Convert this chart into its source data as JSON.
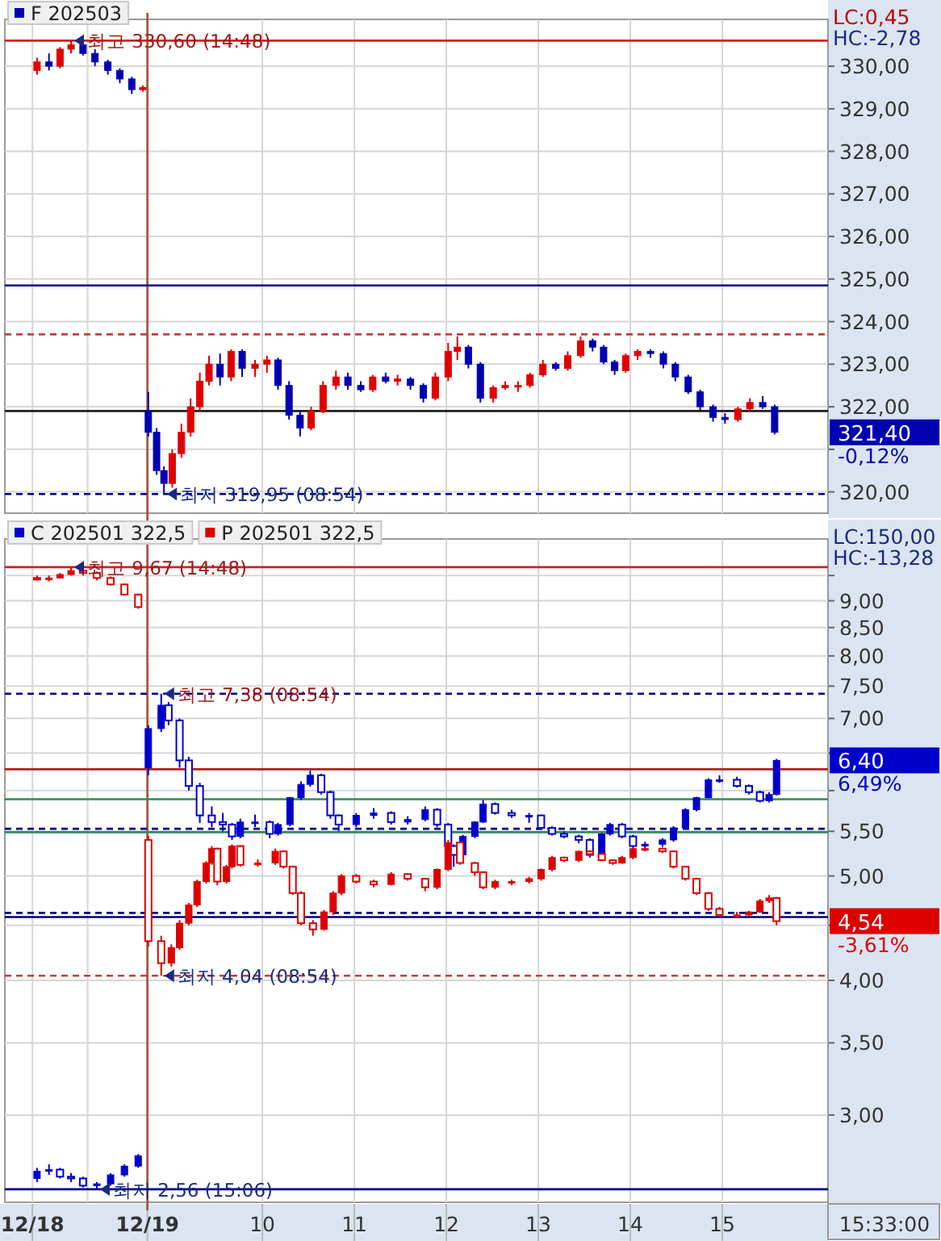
{
  "chart_data": [
    {
      "type": "candlestick",
      "legend": "top left",
      "grid": true,
      "tick_labels": "y",
      "xlim": [
        7.2,
        16.15
      ],
      "xticks": [
        {
          "value": 7.5,
          "label": null
        },
        {
          "value": 8.1,
          "label": null
        },
        {
          "value": 8.75,
          "label": null
        },
        {
          "value": 10,
          "label": null
        },
        {
          "value": 11,
          "label": null
        },
        {
          "value": 12,
          "label": null
        },
        {
          "value": 13,
          "label": null
        },
        {
          "value": 14,
          "label": null
        },
        {
          "value": 15,
          "label": null
        }
      ],
      "ylim": [
        319.5,
        331.1
      ],
      "yticks": [
        {
          "value": 320,
          "label": "320,00"
        },
        {
          "value": 321,
          "label": null
        },
        {
          "value": 322,
          "label": "322,00"
        },
        {
          "value": 323,
          "label": "323,00"
        },
        {
          "value": 324,
          "label": "324,00"
        },
        {
          "value": 325,
          "label": "325,00"
        },
        {
          "value": 326,
          "label": "326,00"
        },
        {
          "value": 327,
          "label": "327,00"
        },
        {
          "value": 328,
          "label": "328,00"
        },
        {
          "value": 329,
          "label": "329,00"
        },
        {
          "value": 330,
          "label": "330,00"
        }
      ],
      "ref_lines": [
        {
          "axis": "x",
          "value": 8.75,
          "color": "#a0522d"
        },
        {
          "axis": "y",
          "value": 330.6,
          "color": "#d42020"
        },
        {
          "axis": "y",
          "value": 324.85,
          "color": "#000080"
        },
        {
          "axis": "y",
          "value": 323.7,
          "color": "#c04040",
          "line_style": "dashed"
        },
        {
          "axis": "y",
          "value": 321.9,
          "color": "#202020"
        },
        {
          "axis": "y",
          "value": 319.95,
          "color": "#000080",
          "line_style": "dashed"
        }
      ],
      "series": [
        {
          "name": "F 202503",
          "color": "#0000b0",
          "x": [
            7.55,
            7.68,
            7.8,
            7.92,
            8.05,
            8.18,
            8.32,
            8.45,
            8.58,
            8.7,
            8.76,
            8.85,
            8.93,
            9.02,
            9.12,
            9.22,
            9.32,
            9.42,
            9.54,
            9.66,
            9.78,
            9.92,
            10.05,
            10.17,
            10.29,
            10.41,
            10.53,
            10.66,
            10.8,
            10.93,
            11.07,
            11.2,
            11.34,
            11.47,
            11.61,
            11.75,
            11.88,
            12.02,
            12.12,
            12.24,
            12.37,
            12.51,
            12.64,
            12.78,
            12.91,
            13.05,
            13.19,
            13.32,
            13.46,
            13.59,
            13.71,
            13.83,
            13.95,
            14.08,
            14.22,
            14.36,
            14.49,
            14.63,
            14.76,
            14.9,
            15.03,
            15.17,
            15.3,
            15.44,
            15.57
          ],
          "ohlc": [
            [
              329.9,
              330.2,
              329.8,
              330.1
            ],
            [
              330.1,
              330.3,
              329.9,
              330.0
            ],
            [
              330.0,
              330.45,
              329.95,
              330.4
            ],
            [
              330.4,
              330.6,
              330.3,
              330.5
            ],
            [
              330.5,
              330.55,
              330.25,
              330.3
            ],
            [
              330.3,
              330.4,
              330.0,
              330.1
            ],
            [
              330.1,
              330.15,
              329.8,
              329.9
            ],
            [
              329.9,
              329.95,
              329.6,
              329.7
            ],
            [
              329.7,
              329.75,
              329.35,
              329.45
            ],
            [
              329.45,
              329.55,
              329.4,
              329.5
            ],
            [
              321.9,
              322.35,
              321.3,
              321.4
            ],
            [
              321.4,
              321.5,
              320.4,
              320.5
            ],
            [
              320.5,
              320.6,
              319.95,
              320.2
            ],
            [
              320.2,
              321.0,
              320.1,
              320.9
            ],
            [
              320.9,
              321.6,
              320.8,
              321.4
            ],
            [
              321.4,
              322.2,
              321.3,
              322.0
            ],
            [
              322.0,
              322.8,
              321.9,
              322.6
            ],
            [
              322.6,
              323.2,
              322.5,
              323.0
            ],
            [
              323.0,
              323.25,
              322.5,
              322.7
            ],
            [
              322.7,
              323.35,
              322.6,
              323.3
            ],
            [
              323.3,
              323.35,
              322.7,
              322.9
            ],
            [
              322.9,
              323.1,
              322.7,
              323.0
            ],
            [
              323.0,
              323.2,
              322.8,
              323.1
            ],
            [
              323.1,
              323.15,
              322.4,
              322.5
            ],
            [
              322.5,
              322.6,
              321.7,
              321.8
            ],
            [
              321.8,
              321.9,
              321.3,
              321.5
            ],
            [
              321.5,
              322.0,
              321.45,
              321.9
            ],
            [
              321.9,
              322.6,
              321.85,
              322.5
            ],
            [
              322.5,
              322.85,
              322.4,
              322.7
            ],
            [
              322.7,
              322.8,
              322.4,
              322.5
            ],
            [
              322.5,
              322.6,
              322.35,
              322.4
            ],
            [
              322.4,
              322.75,
              322.35,
              322.7
            ],
            [
              322.7,
              322.8,
              322.55,
              322.6
            ],
            [
              322.6,
              322.75,
              322.5,
              322.65
            ],
            [
              322.65,
              322.7,
              322.4,
              322.5
            ],
            [
              322.5,
              322.55,
              322.1,
              322.2
            ],
            [
              322.2,
              322.8,
              322.15,
              322.7
            ],
            [
              322.7,
              323.5,
              322.6,
              323.3
            ],
            [
              323.3,
              323.65,
              323.1,
              323.4
            ],
            [
              323.4,
              323.45,
              322.9,
              323.0
            ],
            [
              323.0,
              323.05,
              322.1,
              322.2
            ],
            [
              322.2,
              322.5,
              322.1,
              322.45
            ],
            [
              322.45,
              322.6,
              322.4,
              322.5
            ],
            [
              322.5,
              322.6,
              322.35,
              322.5
            ],
            [
              322.5,
              322.8,
              322.45,
              322.75
            ],
            [
              322.75,
              323.1,
              322.7,
              323.0
            ],
            [
              323.0,
              323.05,
              322.85,
              322.9
            ],
            [
              322.9,
              323.3,
              322.85,
              323.2
            ],
            [
              323.2,
              323.65,
              323.15,
              323.55
            ],
            [
              323.55,
              323.6,
              323.3,
              323.4
            ],
            [
              323.4,
              323.45,
              323.0,
              323.05
            ],
            [
              323.05,
              323.1,
              322.75,
              322.85
            ],
            [
              322.85,
              323.25,
              322.8,
              323.2
            ],
            [
              323.2,
              323.35,
              323.1,
              323.3
            ],
            [
              323.3,
              323.35,
              323.15,
              323.25
            ],
            [
              323.25,
              323.3,
              322.9,
              323.0
            ],
            [
              323.0,
              323.05,
              322.6,
              322.7
            ],
            [
              322.7,
              322.75,
              322.3,
              322.35
            ],
            [
              322.35,
              322.4,
              321.9,
              322.0
            ],
            [
              322.0,
              322.05,
              321.65,
              321.75
            ],
            [
              321.75,
              321.85,
              321.6,
              321.7
            ],
            [
              321.7,
              322.0,
              321.65,
              321.95
            ],
            [
              321.95,
              322.2,
              321.9,
              322.1
            ],
            [
              322.1,
              322.25,
              321.95,
              322.0
            ],
            [
              322.0,
              322.05,
              321.35,
              321.4
            ]
          ],
          "colors": [
            "#e00000",
            "#0000b0",
            "#e00000",
            "#e00000",
            "#0000b0",
            "#0000b0",
            "#0000b0",
            "#0000b0",
            "#0000b0",
            "#e00000",
            "#0000b0",
            "#0000b0",
            "#0000b0",
            "#e00000",
            "#e00000",
            "#e00000",
            "#e00000",
            "#e00000",
            "#0000b0",
            "#e00000",
            "#0000b0",
            "#e00000",
            "#e00000",
            "#0000b0",
            "#0000b0",
            "#0000b0",
            "#e00000",
            "#e00000",
            "#e00000",
            "#0000b0",
            "#0000b0",
            "#e00000",
            "#0000b0",
            "#e00000",
            "#0000b0",
            "#0000b0",
            "#e00000",
            "#e00000",
            "#e00000",
            "#0000b0",
            "#0000b0",
            "#e00000",
            "#e00000",
            "#e00000",
            "#e00000",
            "#e00000",
            "#0000b0",
            "#e00000",
            "#e00000",
            "#0000b0",
            "#0000b0",
            "#0000b0",
            "#e00000",
            "#e00000",
            "#0000b0",
            "#0000b0",
            "#0000b0",
            "#0000b0",
            "#0000b0",
            "#0000b0",
            "#0000b0",
            "#e00000",
            "#e00000",
            "#0000b0",
            "#0000b0"
          ]
        }
      ],
      "annotations": [
        "LC:0,45",
        "HC:-2,78",
        {
          "text": "최고 330,60 (14:48)",
          "x": 7.92,
          "y": 330.6
        },
        {
          "text": "최저 319,95 (08:54)",
          "x": 8.93,
          "y": 319.95
        },
        "321,40",
        "-0,12%"
      ]
    },
    {
      "type": "candlestick",
      "legend": "top left",
      "grid": true,
      "log": true,
      "xlim": [
        7.2,
        16.15
      ],
      "xticks": [
        {
          "value": 7.5,
          "label": "12/18"
        },
        {
          "value": 8.1,
          "label": null
        },
        {
          "value": 8.75,
          "label": "12/19"
        },
        10,
        11,
        12,
        13,
        14,
        15
      ],
      "ylim": [
        2.49,
        10.27
      ],
      "yticks": [
        {
          "value": 3,
          "label": "3,00"
        },
        {
          "value": 3.5,
          "label": "3,50"
        },
        {
          "value": 4,
          "label": "4,00"
        },
        {
          "value": 4.5,
          "label": null
        },
        {
          "value": 5,
          "label": "5,00"
        },
        {
          "value": 5.5,
          "label": "5,50"
        },
        {
          "value": 6,
          "label": null
        },
        {
          "value": 6.5,
          "label": null
        },
        {
          "value": 7,
          "label": "7,00"
        },
        {
          "value": 7.5,
          "label": "7,50"
        },
        {
          "value": 8,
          "label": "8,00"
        },
        {
          "value": 8.5,
          "label": "8,50"
        },
        {
          "value": 9,
          "label": "9,00"
        },
        {
          "value": 9.5,
          "label": null
        }
      ],
      "ref_lines": [
        {
          "axis": "x",
          "value": 8.75,
          "color": "#a0522d"
        },
        {
          "axis": "y",
          "value": 9.67,
          "color": "#d42020"
        },
        {
          "axis": "y",
          "value": 7.38,
          "color": "#000080",
          "line_style": "dashed"
        },
        {
          "axis": "y",
          "value": 6.28,
          "color": "#b02020"
        },
        {
          "axis": "y",
          "value": 5.89,
          "color": "#2e8b57"
        },
        {
          "axis": "y",
          "value": 5.53,
          "color": "#000080",
          "line_style": "dashed"
        },
        {
          "axis": "y",
          "value": 5.49,
          "color": "#2e8b57"
        },
        {
          "axis": "y",
          "value": 4.62,
          "color": "#000080",
          "line_style": "dashed"
        },
        {
          "axis": "y",
          "value": 4.58,
          "color": "#000080"
        },
        {
          "axis": "y",
          "value": 4.04,
          "color": "#c04040",
          "line_style": "dashed"
        },
        {
          "axis": "y",
          "value": 2.56,
          "color": "#000080"
        }
      ],
      "series": [
        {
          "name": "C 202501 322,5",
          "color": "#0000cc",
          "x": [
            7.55,
            7.68,
            7.8,
            7.92,
            8.05,
            8.2,
            8.35,
            8.5,
            8.65,
            8.76,
            8.9,
            8.98,
            9.1,
            9.2,
            9.32,
            9.45,
            9.57,
            9.67,
            9.76,
            9.92,
            10.08,
            10.17,
            10.3,
            10.42,
            10.52,
            10.64,
            10.74,
            10.83,
            11.02,
            11.21,
            11.4,
            11.58,
            11.77,
            11.9,
            12.02,
            12.08,
            12.18,
            12.31,
            12.4,
            12.53,
            12.71,
            12.9,
            13.03,
            13.15,
            13.28,
            13.44,
            13.56,
            13.69,
            13.78,
            13.91,
            14.03,
            14.16,
            14.35,
            14.47,
            14.6,
            14.72,
            14.85,
            14.97,
            15.16,
            15.29,
            15.41,
            15.51,
            15.59
          ],
          "ohlc": [
            [
              2.62,
              2.68,
              2.6,
              2.66
            ],
            [
              2.66,
              2.7,
              2.64,
              2.67
            ],
            [
              2.67,
              2.68,
              2.62,
              2.63
            ],
            [
              2.63,
              2.65,
              2.6,
              2.62
            ],
            [
              2.62,
              2.63,
              2.57,
              2.58
            ],
            [
              2.58,
              2.6,
              2.56,
              2.59
            ],
            [
              2.59,
              2.65,
              2.58,
              2.64
            ],
            [
              2.64,
              2.7,
              2.63,
              2.69
            ],
            [
              2.69,
              2.76,
              2.68,
              2.75
            ],
            [
              6.3,
              6.9,
              6.2,
              6.85
            ],
            [
              6.85,
              7.38,
              6.8,
              7.2
            ],
            [
              7.2,
              7.25,
              6.9,
              6.97
            ],
            [
              6.97,
              7.0,
              6.3,
              6.4
            ],
            [
              6.4,
              6.45,
              6.0,
              6.06
            ],
            [
              6.06,
              6.1,
              5.6,
              5.69
            ],
            [
              5.69,
              5.8,
              5.55,
              5.61
            ],
            [
              5.61,
              5.72,
              5.5,
              5.58
            ],
            [
              5.58,
              5.6,
              5.4,
              5.44
            ],
            [
              5.44,
              5.65,
              5.42,
              5.61
            ],
            [
              5.61,
              5.7,
              5.55,
              5.61
            ],
            [
              5.61,
              5.63,
              5.42,
              5.47
            ],
            [
              5.47,
              5.6,
              5.45,
              5.58
            ],
            [
              5.58,
              5.92,
              5.56,
              5.91
            ],
            [
              5.91,
              6.12,
              5.88,
              6.08
            ],
            [
              6.08,
              6.26,
              6.05,
              6.2
            ],
            [
              6.2,
              6.22,
              5.95,
              5.98
            ],
            [
              5.98,
              6.0,
              5.65,
              5.69
            ],
            [
              5.69,
              5.7,
              5.5,
              5.58
            ],
            [
              5.58,
              5.72,
              5.55,
              5.69
            ],
            [
              5.69,
              5.78,
              5.65,
              5.72
            ],
            [
              5.72,
              5.74,
              5.58,
              5.61
            ],
            [
              5.61,
              5.68,
              5.58,
              5.64
            ],
            [
              5.64,
              5.8,
              5.62,
              5.76
            ],
            [
              5.76,
              5.78,
              5.55,
              5.58
            ],
            [
              5.58,
              5.6,
              5.3,
              5.33
            ],
            [
              5.33,
              5.35,
              5.1,
              5.23
            ],
            [
              5.23,
              5.46,
              5.2,
              5.44
            ],
            [
              5.44,
              5.62,
              5.42,
              5.61
            ],
            [
              5.61,
              5.88,
              5.6,
              5.83
            ],
            [
              5.83,
              5.85,
              5.7,
              5.72
            ],
            [
              5.72,
              5.76,
              5.66,
              5.69
            ],
            [
              5.69,
              5.72,
              5.6,
              5.69
            ],
            [
              5.69,
              5.7,
              5.52,
              5.54
            ],
            [
              5.54,
              5.56,
              5.45,
              5.47
            ],
            [
              5.47,
              5.5,
              5.42,
              5.44
            ],
            [
              5.44,
              5.46,
              5.36,
              5.4
            ],
            [
              5.4,
              5.42,
              5.2,
              5.23
            ],
            [
              5.23,
              5.48,
              5.22,
              5.47
            ],
            [
              5.47,
              5.6,
              5.45,
              5.58
            ],
            [
              5.58,
              5.6,
              5.42,
              5.44
            ],
            [
              5.44,
              5.46,
              5.3,
              5.33
            ],
            [
              5.33,
              5.38,
              5.3,
              5.35
            ],
            [
              5.35,
              5.42,
              5.32,
              5.4
            ],
            [
              5.4,
              5.56,
              5.38,
              5.54
            ],
            [
              5.54,
              5.78,
              5.52,
              5.76
            ],
            [
              5.76,
              5.92,
              5.74,
              5.91
            ],
            [
              5.91,
              6.16,
              5.9,
              6.14
            ],
            [
              6.14,
              6.2,
              6.1,
              6.14
            ],
            [
              6.14,
              6.18,
              6.04,
              6.06
            ],
            [
              6.06,
              6.08,
              5.95,
              5.98
            ],
            [
              5.98,
              6.0,
              5.85,
              5.87
            ],
            [
              5.87,
              5.98,
              5.85,
              5.95
            ],
            [
              5.95,
              6.42,
              5.94,
              6.4
            ]
          ]
        },
        {
          "name": "P 202501 322,5",
          "color": "#dd0000",
          "x": [
            7.55,
            7.68,
            7.8,
            7.92,
            8.05,
            8.2,
            8.35,
            8.5,
            8.65,
            8.76,
            8.9,
            9.01,
            9.1,
            9.2,
            9.29,
            9.39,
            9.45,
            9.51,
            9.61,
            9.67,
            9.76,
            9.95,
            10.14,
            10.23,
            10.33,
            10.42,
            10.55,
            10.67,
            10.77,
            10.86,
            11.02,
            11.21,
            11.4,
            11.58,
            11.77,
            11.9,
            12.02,
            12.15,
            12.31,
            12.4,
            12.53,
            12.71,
            12.9,
            13.03,
            13.15,
            13.28,
            13.44,
            13.56,
            13.69,
            13.81,
            13.91,
            14.03,
            14.16,
            14.35,
            14.47,
            14.6,
            14.72,
            14.85,
            14.97,
            15.16,
            15.29,
            15.41,
            15.51,
            15.59
          ],
          "ohlc": [
            [
              9.45,
              9.5,
              9.4,
              9.42
            ],
            [
              9.42,
              9.5,
              9.38,
              9.45
            ],
            [
              9.45,
              9.55,
              9.44,
              9.52
            ],
            [
              9.52,
              9.67,
              9.5,
              9.6
            ],
            [
              9.6,
              9.62,
              9.5,
              9.55
            ],
            [
              9.55,
              9.58,
              9.4,
              9.45
            ],
            [
              9.45,
              9.48,
              9.3,
              9.32
            ],
            [
              9.32,
              9.34,
              9.1,
              9.12
            ],
            [
              9.12,
              9.14,
              8.85,
              8.88
            ],
            [
              5.4,
              5.45,
              4.3,
              4.35
            ],
            [
              4.35,
              4.4,
              4.04,
              4.15
            ],
            [
              4.15,
              4.32,
              4.12,
              4.29
            ],
            [
              4.29,
              4.55,
              4.27,
              4.52
            ],
            [
              4.52,
              4.72,
              4.5,
              4.7
            ],
            [
              4.7,
              4.96,
              4.68,
              4.94
            ],
            [
              4.94,
              5.16,
              4.92,
              5.14
            ],
            [
              5.14,
              5.33,
              5.12,
              5.3
            ],
            [
              5.3,
              5.31,
              4.9,
              4.94
            ],
            [
              4.94,
              5.12,
              4.92,
              5.1
            ],
            [
              5.1,
              5.35,
              5.08,
              5.33
            ],
            [
              5.33,
              5.34,
              5.1,
              5.12
            ],
            [
              5.12,
              5.18,
              5.1,
              5.14
            ],
            [
              5.14,
              5.3,
              5.12,
              5.27
            ],
            [
              5.27,
              5.28,
              5.08,
              5.1
            ],
            [
              5.1,
              5.11,
              4.8,
              4.82
            ],
            [
              4.82,
              4.84,
              4.5,
              4.52
            ],
            [
              4.52,
              4.55,
              4.4,
              4.46
            ],
            [
              4.46,
              4.65,
              4.45,
              4.63
            ],
            [
              4.63,
              4.84,
              4.6,
              4.82
            ],
            [
              4.82,
              5.02,
              4.8,
              5.0
            ],
            [
              5.0,
              5.02,
              4.92,
              4.94
            ],
            [
              4.94,
              4.96,
              4.88,
              4.91
            ],
            [
              4.91,
              5.04,
              4.9,
              5.02
            ],
            [
              5.02,
              5.03,
              4.95,
              4.97
            ],
            [
              4.97,
              4.98,
              4.84,
              4.88
            ],
            [
              4.88,
              5.08,
              4.86,
              5.07
            ],
            [
              5.07,
              5.4,
              5.05,
              5.37
            ],
            [
              5.37,
              5.38,
              5.12,
              5.14
            ],
            [
              5.14,
              5.15,
              5.0,
              5.04
            ],
            [
              5.04,
              5.05,
              4.86,
              4.88
            ],
            [
              4.88,
              4.96,
              4.86,
              4.94
            ],
            [
              4.94,
              4.96,
              4.9,
              4.94
            ],
            [
              4.94,
              4.99,
              4.92,
              4.97
            ],
            [
              4.97,
              5.08,
              4.95,
              5.07
            ],
            [
              5.07,
              5.22,
              5.05,
              5.2
            ],
            [
              5.2,
              5.21,
              5.15,
              5.17
            ],
            [
              5.17,
              5.28,
              5.15,
              5.27
            ],
            [
              5.27,
              5.28,
              5.22,
              5.24
            ],
            [
              5.24,
              5.25,
              5.16,
              5.17
            ],
            [
              5.17,
              5.18,
              5.12,
              5.14
            ],
            [
              5.14,
              5.22,
              5.13,
              5.2
            ],
            [
              5.2,
              5.31,
              5.18,
              5.3
            ],
            [
              5.3,
              5.32,
              5.27,
              5.3
            ],
            [
              5.3,
              5.31,
              5.25,
              5.27
            ],
            [
              5.27,
              5.28,
              5.08,
              5.1
            ],
            [
              5.1,
              5.11,
              4.95,
              4.97
            ],
            [
              4.97,
              4.98,
              4.8,
              4.82
            ],
            [
              4.82,
              4.83,
              4.64,
              4.66
            ],
            [
              4.66,
              4.68,
              4.58,
              4.6
            ],
            [
              4.6,
              4.63,
              4.57,
              4.6
            ],
            [
              4.6,
              4.64,
              4.58,
              4.63
            ],
            [
              4.63,
              4.76,
              4.62,
              4.74
            ],
            [
              4.74,
              4.8,
              4.72,
              4.77
            ],
            [
              4.77,
              4.78,
              4.5,
              4.54
            ]
          ]
        }
      ],
      "annotations": [
        "LC:150,00",
        "HC:-13,28",
        {
          "text": "최고 9,67 (14:48)",
          "x": 7.92,
          "y": 9.67
        },
        {
          "text": "최고 7,38 (08:54)",
          "x": 8.9,
          "y": 7.38
        },
        {
          "text": "최저 4,04 (08:54)",
          "x": 8.9,
          "y": 4.04
        },
        {
          "text": "최저 2,56 (15:06)",
          "x": 8.2,
          "y": 2.56
        },
        "6,40",
        "6,49%",
        "4,54",
        "-3,61%",
        "15:33:00"
      ]
    }
  ]
}
